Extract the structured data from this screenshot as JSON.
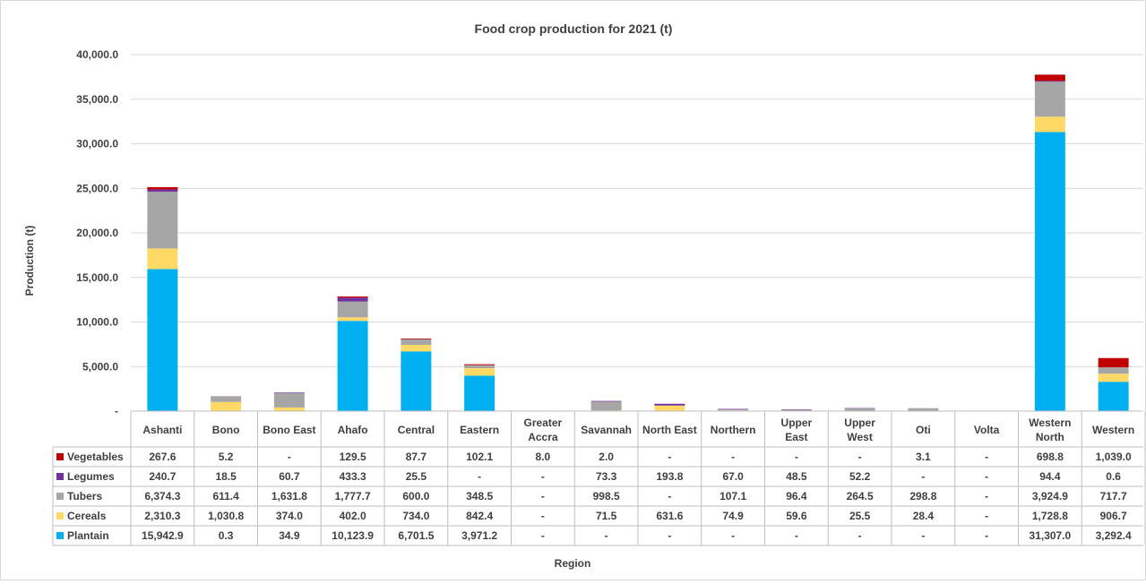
{
  "chart_data": {
    "type": "bar",
    "stacked": true,
    "title": "Food crop production for 2021 (t)",
    "xlabel": "Region",
    "ylabel": "Production (t)",
    "ylim": [
      0,
      40000
    ],
    "yticks": [
      0,
      5000,
      10000,
      15000,
      20000,
      25000,
      30000,
      35000,
      40000
    ],
    "ytick_labels": [
      "-",
      "5,000.0",
      "10,000.0",
      "15,000.0",
      "20,000.0",
      "25,000.0",
      "30,000.0",
      "35,000.0",
      "40,000.0"
    ],
    "grid": true,
    "legend": "data-table",
    "categories": [
      "Ashanti",
      "Bono",
      "Bono East",
      "Ahafo",
      "Central",
      "Eastern",
      "Greater Accra",
      "Savannah",
      "North East",
      "Northern",
      "Upper East",
      "Upper West",
      "Oti",
      "Volta",
      "Western North",
      "Western"
    ],
    "series": [
      {
        "name": "Plantain",
        "color": "#00B0F0",
        "values": [
          15942.9,
          0.3,
          34.9,
          10123.9,
          6701.5,
          3971.2,
          0,
          0,
          0,
          0,
          0,
          0,
          0,
          0,
          31307.0,
          3292.4
        ],
        "labels": [
          "15,942.9",
          "0.3",
          "34.9",
          "10,123.9",
          "6,701.5",
          "3,971.2",
          "-",
          "-",
          "-",
          "-",
          "-",
          "-",
          "-",
          "-",
          "31,307.0",
          "3,292.4"
        ]
      },
      {
        "name": "Cereals",
        "color": "#FFD966",
        "values": [
          2310.3,
          1030.8,
          374.0,
          402.0,
          734.0,
          842.4,
          0,
          71.5,
          631.6,
          74.9,
          59.6,
          25.5,
          28.4,
          0,
          1728.8,
          906.7
        ],
        "labels": [
          "2,310.3",
          "1,030.8",
          "374.0",
          "402.0",
          "734.0",
          "842.4",
          "-",
          "71.5",
          "631.6",
          "74.9",
          "59.6",
          "25.5",
          "28.4",
          "-",
          "1,728.8",
          "906.7"
        ]
      },
      {
        "name": "Tubers",
        "color": "#A6A6A6",
        "values": [
          6374.3,
          611.4,
          1631.8,
          1777.7,
          600.0,
          348.5,
          0,
          998.5,
          0,
          107.1,
          96.4,
          264.5,
          298.8,
          0,
          3924.9,
          717.7
        ],
        "labels": [
          "6,374.3",
          "611.4",
          "1,631.8",
          "1,777.7",
          "600.0",
          "348.5",
          "-",
          "998.5",
          "-",
          "107.1",
          "96.4",
          "264.5",
          "298.8",
          "-",
          "3,924.9",
          "717.7"
        ]
      },
      {
        "name": "Legumes",
        "color": "#7030A0",
        "values": [
          240.7,
          18.5,
          60.7,
          433.3,
          25.5,
          0,
          0,
          73.3,
          193.8,
          67.0,
          48.5,
          52.2,
          0,
          0,
          94.4,
          0.6
        ],
        "labels": [
          "240.7",
          "18.5",
          "60.7",
          "433.3",
          "25.5",
          "-",
          "-",
          "73.3",
          "193.8",
          "67.0",
          "48.5",
          "52.2",
          "-",
          "-",
          "94.4",
          "0.6"
        ]
      },
      {
        "name": "Vegetables",
        "color": "#C00000",
        "values": [
          267.6,
          5.2,
          0,
          129.5,
          87.7,
          102.1,
          8.0,
          2.0,
          0,
          0,
          0,
          0,
          3.1,
          0,
          698.8,
          1039.0
        ],
        "labels": [
          "267.6",
          "5.2",
          "-",
          "129.5",
          "87.7",
          "102.1",
          "8.0",
          "2.0",
          "-",
          "-",
          "-",
          "-",
          "3.1",
          "-",
          "698.8",
          "1,039.0"
        ]
      }
    ],
    "table_row_order": [
      "Vegetables",
      "Legumes",
      "Tubers",
      "Cereals",
      "Plantain"
    ]
  }
}
